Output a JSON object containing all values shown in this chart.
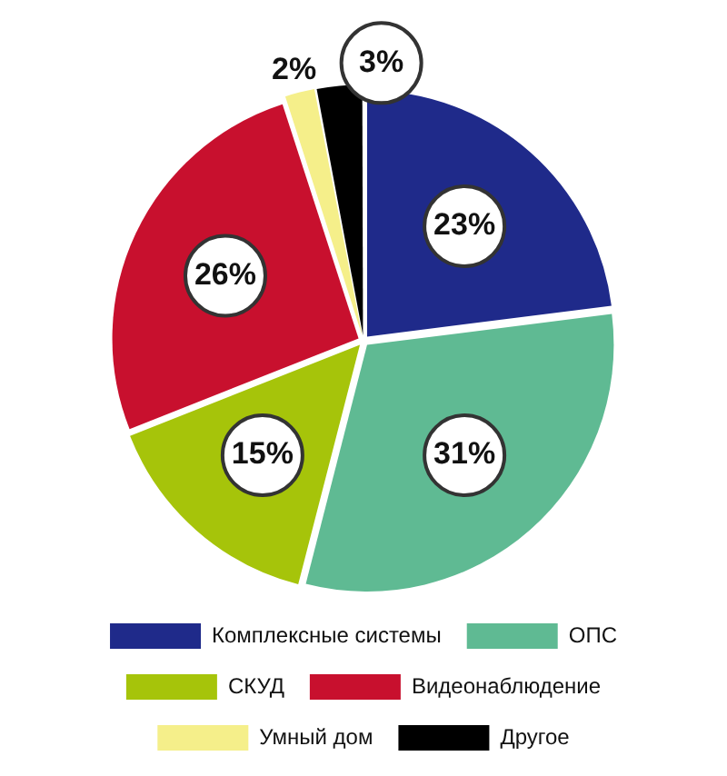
{
  "chart_data": {
    "type": "pie",
    "categories": [
      "Комплексные системы",
      "ОПС",
      "СКУД",
      "Видеонаблюдение",
      "Умный дом",
      "Другое"
    ],
    "values": [
      23,
      31,
      15,
      26,
      2,
      3
    ],
    "value_labels": [
      "23%",
      "31%",
      "15%",
      "26%",
      "2%",
      "3%"
    ],
    "colors": [
      "#1f2a8a",
      "#5fba93",
      "#a6c40a",
      "#c8102e",
      "#f5ef8a",
      "#000000"
    ],
    "legend": "bottom"
  }
}
